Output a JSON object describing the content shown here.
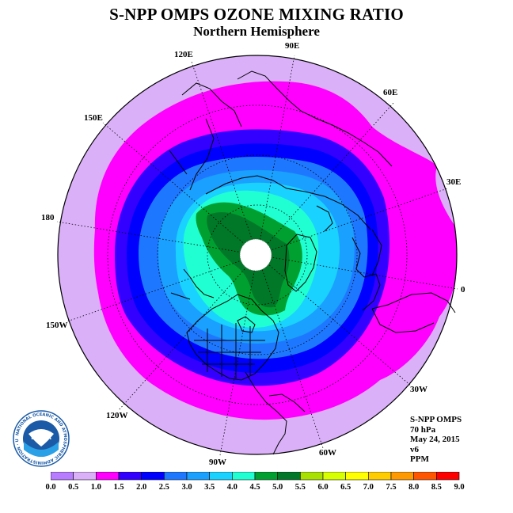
{
  "header": {
    "title": "S-NPP OMPS OZONE MIXING RATIO",
    "subtitle": "Northern Hemisphere"
  },
  "longitude_labels": [
    "90E",
    "60E",
    "30E",
    "0",
    "30W",
    "60W",
    "90W",
    "120W",
    "150W",
    "180",
    "150E",
    "120E"
  ],
  "info": {
    "instrument": "S-NPP OMPS",
    "level": "70 hPa",
    "date": "May 24, 2015",
    "version": "v6",
    "units": "PPM"
  },
  "logo": {
    "text": "NOAA",
    "ring_text": "NATIONAL OCEANIC AND ATMOSPHERIC ADMINISTRATION · U.S. DEPARTMENT OF COMMERCE"
  },
  "colorbar": {
    "ticks": [
      "0.0",
      "0.5",
      "1.0",
      "1.5",
      "2.0",
      "2.5",
      "3.0",
      "3.5",
      "4.0",
      "4.5",
      "5.0",
      "5.5",
      "6.0",
      "6.5",
      "7.0",
      "7.5",
      "8.0",
      "8.5",
      "9.0"
    ],
    "colors": [
      "#b77cff",
      "#dab0f8",
      "#ff00ff",
      "#3300ff",
      "#0000ff",
      "#1e78ff",
      "#1aa0ff",
      "#1ad2ff",
      "#20ffd2",
      "#00a030",
      "#007828",
      "#a8e000",
      "#d8ff00",
      "#ffff00",
      "#ffcc00",
      "#ff9900",
      "#ff5500",
      "#ff0000",
      "#996633"
    ]
  },
  "map_legend": {
    "level_colors": [
      "#dab0f8",
      "#ff00ff",
      "#3300ff",
      "#0000ff",
      "#1e78ff",
      "#1aa0ff",
      "#1ad2ff",
      "#20ffd2",
      "#00a030",
      "#007828"
    ]
  }
}
